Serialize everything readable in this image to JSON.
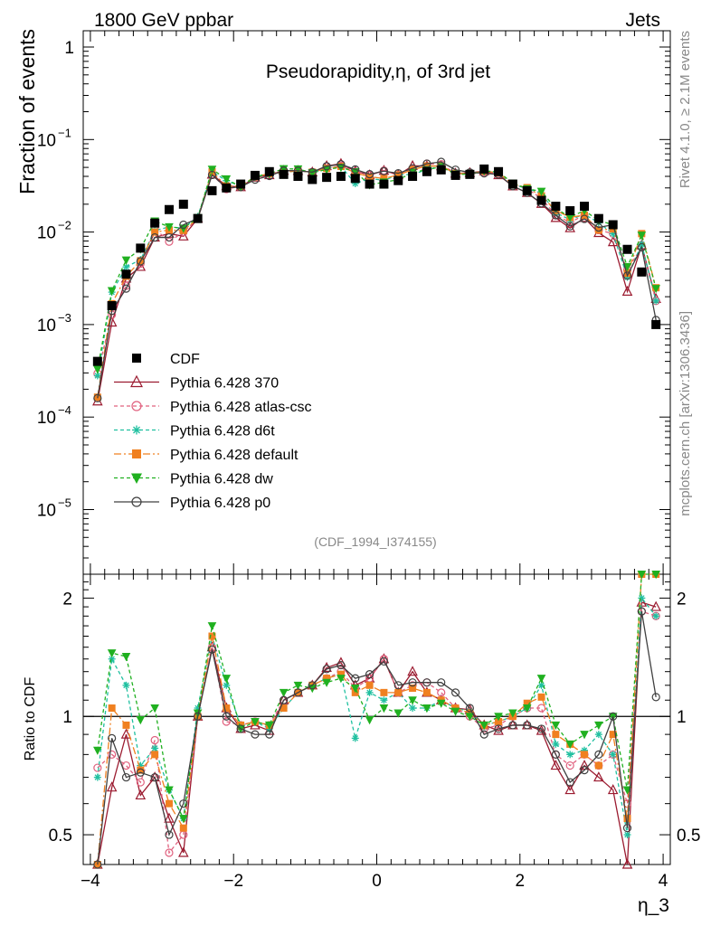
{
  "header": {
    "left": "1800 GeV ppbar",
    "right": "Jets"
  },
  "side": {
    "rivet": "Rivet 4.1.0, ≥ 2.1M events",
    "mcplots": "mcplots.cern.ch [arXiv:1306.3436]"
  },
  "analysis_id": "(CDF_1994_I374155)",
  "chart_data": {
    "type": "line",
    "title": "Pseudorapidity,η, of 3rd jet",
    "xlabel": "η_3",
    "ylabel": "Fraction of events",
    "ratio_ylabel": "Ratio to CDF",
    "xlim": [
      -4.1,
      4.1
    ],
    "ylim": [
      2e-06,
      1.5
    ],
    "ratio_ylim": [
      0.42,
      2.3
    ],
    "y_ticks": [
      {
        "v": 1,
        "base": "1",
        "exp": ""
      },
      {
        "v": 0.1,
        "base": "10",
        "exp": "−1"
      },
      {
        "v": 0.01,
        "base": "10",
        "exp": "−2"
      },
      {
        "v": 0.001,
        "base": "10",
        "exp": "−3"
      },
      {
        "v": 0.0001,
        "base": "10",
        "exp": "−4"
      },
      {
        "v": 1e-05,
        "base": "10",
        "exp": "−5"
      }
    ],
    "x_ticks": [
      {
        "v": -4,
        "label": "−4"
      },
      {
        "v": -2,
        "label": "−2"
      },
      {
        "v": 0,
        "label": "0"
      },
      {
        "v": 2,
        "label": "2"
      },
      {
        "v": 4,
        "label": "4"
      }
    ],
    "ratio_ticks": [
      {
        "v": 0.5,
        "label": "0.5"
      },
      {
        "v": 1,
        "label": "1"
      },
      {
        "v": 2,
        "label": "2"
      }
    ],
    "x": [
      -3.9,
      -3.7,
      -3.5,
      -3.3,
      -3.1,
      -2.9,
      -2.7,
      -2.5,
      -2.3,
      -2.1,
      -1.9,
      -1.7,
      -1.5,
      -1.3,
      -1.1,
      -0.9,
      -0.7,
      -0.5,
      -0.3,
      -0.1,
      0.1,
      0.3,
      0.5,
      0.7,
      0.9,
      1.1,
      1.3,
      1.5,
      1.7,
      1.9,
      2.1,
      2.3,
      2.5,
      2.7,
      2.9,
      3.1,
      3.3,
      3.5,
      3.7,
      3.9
    ],
    "data_series": {
      "name": "CDF",
      "values": [
        0.0004,
        0.0016,
        0.0035,
        0.0067,
        0.0125,
        0.0175,
        0.02,
        0.014,
        0.028,
        0.03,
        0.033,
        0.041,
        0.045,
        0.042,
        0.04,
        0.037,
        0.039,
        0.04,
        0.038,
        0.033,
        0.033,
        0.036,
        0.04,
        0.045,
        0.047,
        0.041,
        0.042,
        0.048,
        0.045,
        0.033,
        0.028,
        0.022,
        0.019,
        0.017,
        0.019,
        0.014,
        0.012,
        0.0065,
        0.0037,
        0.001
      ]
    },
    "series": [
      {
        "name": "Pythia 6.428 370",
        "color": "#9b1b30",
        "marker": "triangle-open",
        "dash": "",
        "ratio": [
          0.37,
          0.66,
          0.9,
          0.63,
          0.7,
          0.55,
          0.45,
          1.0,
          1.5,
          1.05,
          0.93,
          0.95,
          0.92,
          1.1,
          1.15,
          1.2,
          1.33,
          1.37,
          1.2,
          1.25,
          1.4,
          1.15,
          1.3,
          1.15,
          1.1,
          1.05,
          1.04,
          0.95,
          0.92,
          0.95,
          0.95,
          0.92,
          0.75,
          0.65,
          0.75,
          0.7,
          0.65,
          0.35,
          1.95,
          1.9
        ]
      },
      {
        "name": "Pythia 6.428 atlas-csc",
        "color": "#e0607e",
        "marker": "circle-open",
        "dash": "4,3",
        "ratio": [
          0.74,
          0.8,
          0.75,
          0.68,
          0.87,
          0.45,
          0.5,
          1.0,
          1.5,
          0.97,
          0.95,
          0.97,
          0.95,
          1.1,
          1.15,
          1.2,
          1.25,
          1.3,
          1.18,
          1.25,
          1.4,
          1.15,
          1.2,
          1.22,
          1.15,
          1.05,
          1.0,
          0.93,
          0.95,
          1.0,
          1.05,
          1.05,
          0.8,
          0.75,
          0.8,
          0.75,
          0.8,
          0.6,
          1.85,
          1.8
        ]
      },
      {
        "name": "Pythia 6.428 d6t",
        "color": "#20c0a0",
        "marker": "asterisk",
        "dash": "4,3",
        "ratio": [
          0.7,
          1.4,
          1.2,
          0.75,
          0.83,
          0.65,
          0.55,
          1.05,
          1.6,
          1.2,
          0.95,
          0.97,
          0.93,
          1.05,
          1.15,
          1.2,
          1.25,
          1.28,
          0.88,
          1.15,
          1.1,
          1.15,
          1.05,
          1.05,
          1.1,
          1.05,
          1.03,
          0.95,
          0.97,
          1.0,
          1.05,
          1.2,
          0.85,
          0.8,
          0.82,
          0.9,
          0.8,
          0.5,
          2.0,
          1.8
        ]
      },
      {
        "name": "Pythia 6.428 default",
        "color": "#f08020",
        "marker": "square",
        "dash": "8,3,2,3",
        "ratio": [
          0.41,
          1.05,
          0.95,
          0.73,
          0.8,
          0.6,
          0.52,
          1.0,
          1.6,
          1.05,
          0.95,
          0.97,
          0.95,
          1.05,
          1.15,
          1.2,
          1.25,
          1.28,
          1.15,
          1.2,
          1.15,
          1.15,
          1.18,
          1.15,
          1.1,
          1.05,
          1.02,
          0.95,
          0.97,
          1.0,
          1.08,
          1.12,
          0.9,
          0.85,
          0.8,
          0.75,
          0.9,
          0.55,
          2.6,
          2.5
        ]
      },
      {
        "name": "Pythia 6.428 dw",
        "color": "#20b020",
        "marker": "triangle-down",
        "dash": "4,3",
        "ratio": [
          0.82,
          1.45,
          1.42,
          0.98,
          1.05,
          0.65,
          0.55,
          1.02,
          1.7,
          1.25,
          0.93,
          0.97,
          0.95,
          1.15,
          1.2,
          1.18,
          1.22,
          1.25,
          1.18,
          0.98,
          1.05,
          1.02,
          1.1,
          1.05,
          1.08,
          1.03,
          1.0,
          0.95,
          1.0,
          1.02,
          1.05,
          1.25,
          0.95,
          0.85,
          0.9,
          0.95,
          1.0,
          0.65,
          2.5,
          2.45
        ]
      },
      {
        "name": "Pythia 6.428 p0",
        "color": "#404040",
        "marker": "circle-open",
        "dash": "",
        "ratio": [
          0.4,
          0.88,
          0.7,
          0.72,
          0.7,
          0.5,
          0.6,
          1.0,
          1.48,
          1.0,
          0.93,
          0.9,
          0.9,
          1.1,
          1.15,
          1.2,
          1.32,
          1.35,
          1.25,
          1.28,
          1.38,
          1.2,
          1.22,
          1.22,
          1.22,
          1.15,
          1.05,
          0.9,
          0.93,
          0.95,
          0.95,
          0.93,
          0.8,
          0.68,
          0.73,
          0.8,
          1.0,
          0.52,
          1.85,
          1.12
        ]
      }
    ]
  }
}
